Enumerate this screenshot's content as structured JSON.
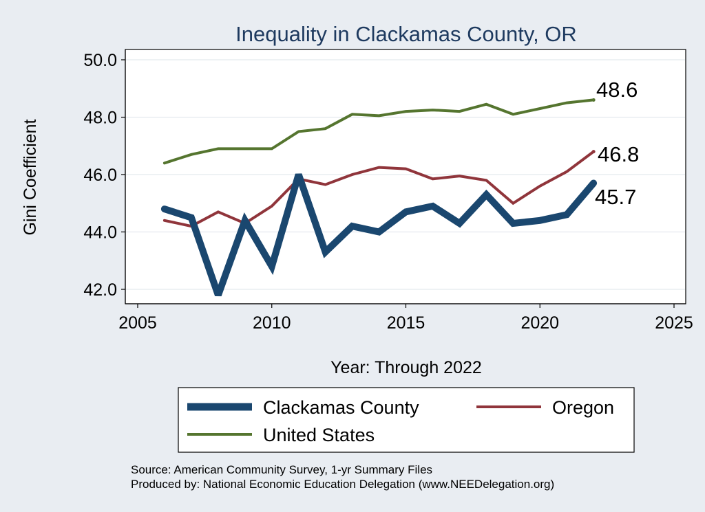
{
  "chart_data": {
    "type": "line",
    "title": "Inequality in Clackamas County, OR",
    "xlabel": "Year: Through 2022",
    "ylabel": "Gini Coefficient",
    "xlim": [
      2005,
      2025
    ],
    "ylim": [
      41.6,
      50.4
    ],
    "xticks": [
      "2005",
      "2010",
      "2015",
      "2020",
      "2025"
    ],
    "yticks": [
      "42.0",
      "44.0",
      "46.0",
      "48.0",
      "50.0"
    ],
    "grid": true,
    "legend_position": "bottom",
    "series": [
      {
        "name": "Clackamas County",
        "color": "#1a476f",
        "x": [
          2006,
          2007,
          2008,
          2009,
          2010,
          2011,
          2012,
          2013,
          2014,
          2015,
          2016,
          2017,
          2018,
          2019,
          2020,
          2021,
          2022
        ],
        "values": [
          44.8,
          44.5,
          41.8,
          44.4,
          42.8,
          46.0,
          43.3,
          44.2,
          44.0,
          44.7,
          44.9,
          44.3,
          45.3,
          44.3,
          44.4,
          44.6,
          45.7
        ],
        "end_label": "45.7"
      },
      {
        "name": "Oregon",
        "color": "#90353b",
        "x": [
          2006,
          2007,
          2008,
          2009,
          2010,
          2011,
          2012,
          2013,
          2014,
          2015,
          2016,
          2017,
          2018,
          2019,
          2020,
          2021,
          2022
        ],
        "values": [
          44.4,
          44.2,
          44.7,
          44.3,
          44.9,
          45.85,
          45.65,
          46.0,
          46.25,
          46.2,
          45.85,
          45.95,
          45.8,
          45.0,
          45.6,
          46.1,
          46.8
        ],
        "end_label": "46.8"
      },
      {
        "name": "United States",
        "color": "#55752f",
        "x": [
          2006,
          2007,
          2008,
          2009,
          2010,
          2011,
          2012,
          2013,
          2014,
          2015,
          2016,
          2017,
          2018,
          2019,
          2020,
          2021,
          2022
        ],
        "values": [
          46.4,
          46.7,
          46.9,
          46.9,
          46.9,
          47.5,
          47.6,
          48.1,
          48.05,
          48.2,
          48.25,
          48.2,
          48.45,
          48.1,
          48.3,
          48.5,
          48.6
        ],
        "end_label": "48.6"
      }
    ]
  },
  "notes": {
    "source": "Source: American Community Survey, 1-yr Summary Files",
    "produced_by": "Produced by: National Economic Education Delegation (www.NEEDelegation.org)"
  }
}
